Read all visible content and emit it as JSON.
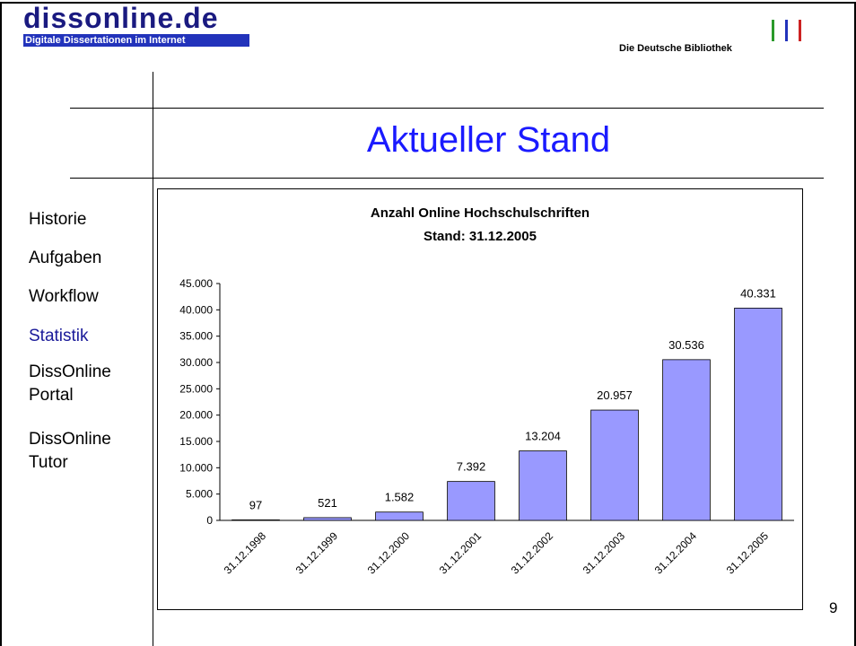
{
  "logo": {
    "title": "dissonline.de",
    "subtitle": "Digitale Dissertationen im Internet"
  },
  "brand": "Die Deutsche Bibliothek",
  "heading": "Aktueller Stand",
  "nav": [
    "Historie",
    "Aufgaben",
    "Workflow",
    "Statistik",
    "DissOnline Portal",
    "DissOnline Tutor"
  ],
  "page_number": "9",
  "chart_data": {
    "type": "bar",
    "title": "Anzahl Online Hochschulschriften",
    "subtitle": "Stand: 31.12.2005",
    "categories": [
      "31.12.1998",
      "31.12.1999",
      "31.12.2000",
      "31.12.2001",
      "31.12.2002",
      "31.12.2003",
      "31.12.2004",
      "31.12.2005"
    ],
    "values": [
      97,
      521,
      1582,
      7392,
      13204,
      20957,
      30536,
      40331
    ],
    "value_labels": [
      "97",
      "521",
      "1.582",
      "7.392",
      "13.204",
      "20.957",
      "30.536",
      "40.331"
    ],
    "color": "#9999ff",
    "ylim": [
      0,
      45000
    ],
    "yticks": [
      0,
      {
        "value": 5000,
        "label": "5.000"
      },
      {
        "value": 10000,
        "label": "10.000"
      },
      {
        "value": 15000,
        "label": "15.000"
      },
      {
        "value": 20000,
        "label": "20.000"
      },
      {
        "value": 25000,
        "label": "25.000"
      },
      {
        "value": 30000,
        "label": "30.000"
      },
      {
        "value": 35000,
        "label": "35.000"
      },
      {
        "value": 40000,
        "label": "40.000"
      },
      {
        "value": 45000,
        "label": "45.000"
      }
    ],
    "grid": false
  }
}
